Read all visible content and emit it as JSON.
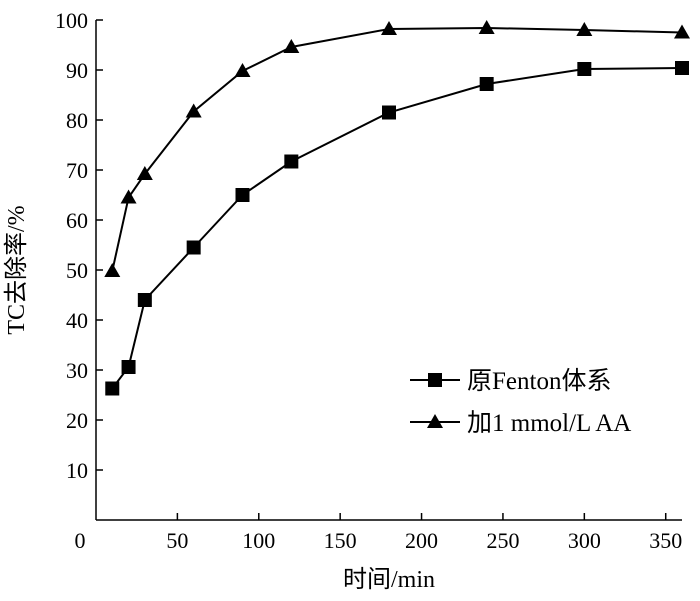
{
  "chart_data": {
    "type": "line",
    "xlabel": "时间/min",
    "ylabel": "TC去除率/%",
    "xlim": [
      0,
      360
    ],
    "ylim": [
      0,
      100
    ],
    "xticks": [
      0,
      50,
      100,
      150,
      200,
      250,
      300,
      350
    ],
    "yticks": [
      10,
      20,
      30,
      40,
      50,
      60,
      70,
      80,
      90,
      100
    ],
    "xtick_labels": [
      "0",
      "50",
      "100",
      "150",
      "200",
      "250",
      "300",
      "350"
    ],
    "ytick_labels": [
      "10",
      "20",
      "30",
      "40",
      "50",
      "60",
      "70",
      "80",
      "90",
      "100"
    ],
    "grid": false,
    "legend": "bottom-right",
    "series": [
      {
        "name": "原Fenton体系",
        "marker": "square",
        "color": "#000000",
        "x": [
          10,
          20,
          30,
          60,
          90,
          120,
          180,
          240,
          300,
          360
        ],
        "y": [
          26.3,
          30.6,
          44,
          54.5,
          65,
          71.7,
          81.5,
          87.2,
          90.2,
          90.4
        ]
      },
      {
        "name": "加1 mmol/L AA",
        "marker": "triangle",
        "color": "#000000",
        "x": [
          10,
          20,
          30,
          60,
          90,
          120,
          180,
          240,
          300,
          360
        ],
        "y": [
          49.8,
          64.5,
          69.2,
          81.7,
          89.8,
          94.6,
          98.2,
          98.4,
          98,
          97.5
        ]
      }
    ]
  }
}
